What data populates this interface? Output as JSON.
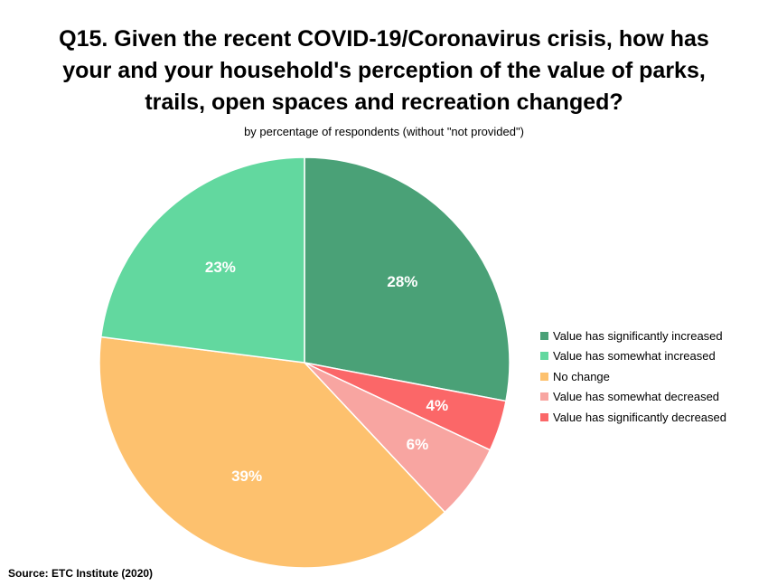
{
  "title_lines": [
    "Q15. Given the recent COVID-19/Coronavirus crisis, how has",
    "your and your household's perception of the value of parks,",
    "trails, open spaces and recreation changed?"
  ],
  "subtitle": "by percentage of respondents (without \"not provided\")",
  "source": "Source:  ETC Institute (2020)",
  "chart_data": {
    "type": "pie",
    "title": "Q15. Given the recent COVID-19/Coronavirus crisis, how has your and your household's perception of the value of parks, trails, open spaces and recreation changed?",
    "subtitle": "by percentage of respondents (without \"not provided\")",
    "legend_position": "right",
    "start": "12 o'clock, clockwise",
    "slices": [
      {
        "name": "Value has significantly increased",
        "value": 28,
        "label": "28%",
        "color": "#4AA177"
      },
      {
        "name": "Value has somewhat decreased",
        "value": 6,
        "label": "6%",
        "color": "#F8A5A1"
      },
      {
        "name": "No change",
        "value": 39,
        "label": "39%",
        "color": "#FDC16E"
      },
      {
        "name": "Value has somewhat increased",
        "value": 23,
        "label": "23%",
        "color": "#62D89F"
      },
      {
        "name": "Value has significantly decreased",
        "value": 4,
        "label": "4%",
        "color": "#FB6768"
      }
    ],
    "slice_order_clockwise_from_top": [
      "Value has significantly increased",
      "Value has significantly decreased",
      "Value has somewhat decreased",
      "No change",
      "Value has somewhat increased"
    ],
    "legend": [
      {
        "label": "Value has significantly increased",
        "color": "#4AA177"
      },
      {
        "label": "Value has somewhat increased",
        "color": "#62D89F"
      },
      {
        "label": "No change",
        "color": "#FDC16E"
      },
      {
        "label": "Value has somewhat decreased",
        "color": "#F8A5A1"
      },
      {
        "label": "Value has significantly decreased",
        "color": "#FB6768"
      }
    ]
  }
}
